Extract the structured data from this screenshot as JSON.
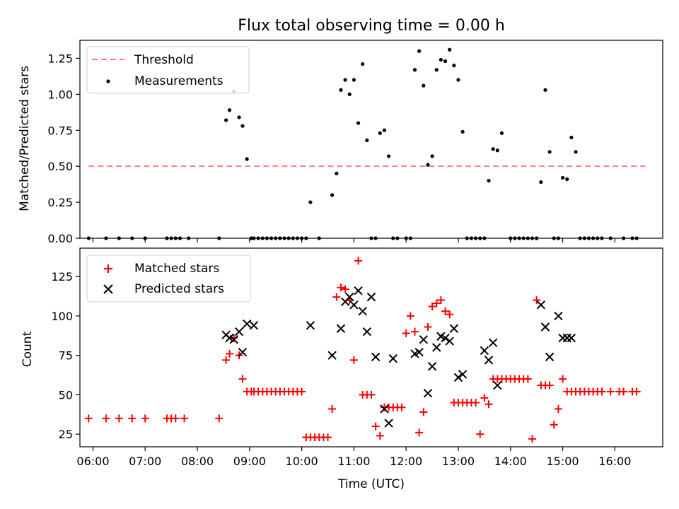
{
  "chart_data": [
    {
      "type": "scatter",
      "title": "Flux total observing time = 0.00 h",
      "xlabel": "",
      "ylabel": "Matched/Predicted stars",
      "xlim": [
        "05:45",
        "16:55"
      ],
      "ylim": [
        0,
        1.375
      ],
      "yticks": [
        0.0,
        0.25,
        0.5,
        0.75,
        1.0,
        1.25
      ],
      "ytick_labels": [
        "0.00",
        "0.25",
        "0.50",
        "0.75",
        "1.00",
        "1.25"
      ],
      "legend": "top-left",
      "threshold": {
        "label": "Threshold",
        "y": 0.5,
        "x_start": "05:55",
        "x_end": "16:35",
        "color": "#ff7f7f",
        "style": "dashed"
      },
      "series": [
        {
          "name": "Measurements",
          "marker": "dot",
          "color": "#000000",
          "x": [
            "05:55",
            "06:15",
            "06:30",
            "06:45",
            "07:00",
            "07:25",
            "07:30",
            "07:35",
            "07:40",
            "07:50",
            "08:25",
            "08:33",
            "08:37",
            "08:42",
            "08:48",
            "08:52",
            "08:57",
            "09:02",
            "09:05",
            "09:10",
            "09:15",
            "09:20",
            "09:25",
            "09:30",
            "09:35",
            "09:40",
            "09:45",
            "09:50",
            "09:55",
            "10:00",
            "10:05",
            "10:10",
            "10:20",
            "10:35",
            "10:40",
            "10:45",
            "10:50",
            "10:55",
            "11:00",
            "11:05",
            "11:10",
            "11:15",
            "11:20",
            "11:25",
            "11:30",
            "11:35",
            "11:40",
            "11:45",
            "11:50",
            "12:00",
            "12:05",
            "12:10",
            "12:15",
            "12:20",
            "12:25",
            "12:30",
            "12:35",
            "12:40",
            "12:45",
            "12:50",
            "12:55",
            "13:00",
            "13:05",
            "13:10",
            "13:15",
            "13:20",
            "13:25",
            "13:30",
            "13:35",
            "13:40",
            "13:45",
            "13:50",
            "14:00",
            "14:05",
            "14:10",
            "14:15",
            "14:20",
            "14:25",
            "14:30",
            "14:35",
            "14:40",
            "14:45",
            "14:50",
            "14:55",
            "15:00",
            "15:05",
            "15:10",
            "15:15",
            "15:20",
            "15:25",
            "15:30",
            "15:35",
            "15:40",
            "15:45",
            "15:55",
            "16:10",
            "16:20",
            "16:25"
          ],
          "y": [
            0,
            0,
            0,
            0,
            0,
            0,
            0,
            0,
            0,
            0,
            0,
            0.82,
            0.89,
            1.02,
            0.84,
            0.78,
            0.55,
            0,
            0,
            0,
            0,
            0,
            0,
            0,
            0,
            0,
            0,
            0,
            0,
            0,
            0,
            0.25,
            0,
            0.3,
            0.45,
            1.03,
            1.1,
            1.0,
            1.1,
            0.8,
            1.21,
            0.68,
            0,
            0,
            0.73,
            0.75,
            0.57,
            0,
            0,
            0,
            0,
            1.17,
            1.3,
            1.06,
            0.51,
            0.57,
            1.17,
            1.24,
            1.23,
            1.31,
            1.2,
            1.1,
            0.74,
            0,
            0,
            0,
            0,
            0,
            0.4,
            0.62,
            0.61,
            0.73,
            0,
            0,
            0,
            0,
            0,
            0,
            0,
            0.39,
            1.03,
            0.6,
            0,
            0,
            0.42,
            0.41,
            0.7,
            0.6,
            0,
            0,
            0,
            0,
            0,
            0,
            0,
            0,
            0,
            0
          ]
        }
      ]
    },
    {
      "type": "scatter",
      "title": "",
      "xlabel": "Time (UTC)",
      "ylabel": "Count",
      "xlim": [
        "05:45",
        "16:55"
      ],
      "ylim": [
        17,
        143
      ],
      "xticks": [
        "06:00",
        "07:00",
        "08:00",
        "09:00",
        "10:00",
        "11:00",
        "12:00",
        "13:00",
        "14:00",
        "15:00",
        "16:00"
      ],
      "yticks": [
        25,
        50,
        75,
        100,
        125
      ],
      "legend": "top-left",
      "series": [
        {
          "name": "Matched stars",
          "marker": "plus",
          "color": "#ff0000",
          "x": [
            "05:55",
            "06:15",
            "06:30",
            "06:45",
            "07:00",
            "07:25",
            "07:30",
            "07:35",
            "07:45",
            "08:25",
            "08:33",
            "08:37",
            "08:42",
            "08:48",
            "08:52",
            "08:57",
            "09:02",
            "09:05",
            "09:10",
            "09:15",
            "09:20",
            "09:25",
            "09:30",
            "09:35",
            "09:40",
            "09:45",
            "09:50",
            "09:55",
            "10:00",
            "10:05",
            "10:10",
            "10:15",
            "10:20",
            "10:25",
            "10:30",
            "10:35",
            "10:40",
            "10:45",
            "10:50",
            "10:55",
            "11:00",
            "11:05",
            "11:10",
            "11:15",
            "11:20",
            "11:25",
            "11:30",
            "11:35",
            "11:40",
            "11:45",
            "11:50",
            "11:55",
            "12:00",
            "12:05",
            "12:10",
            "12:15",
            "12:20",
            "12:25",
            "12:30",
            "12:35",
            "12:40",
            "12:45",
            "12:50",
            "12:55",
            "13:00",
            "13:05",
            "13:10",
            "13:15",
            "13:20",
            "13:25",
            "13:30",
            "13:35",
            "13:40",
            "13:45",
            "13:50",
            "13:55",
            "14:00",
            "14:05",
            "14:10",
            "14:15",
            "14:20",
            "14:25",
            "14:30",
            "14:35",
            "14:40",
            "14:45",
            "14:50",
            "14:55",
            "15:00",
            "15:05",
            "15:10",
            "15:15",
            "15:20",
            "15:25",
            "15:30",
            "15:35",
            "15:40",
            "15:45",
            "15:55",
            "16:05",
            "16:10",
            "16:20",
            "16:25"
          ],
          "y": [
            35,
            35,
            35,
            35,
            35,
            35,
            35,
            35,
            35,
            35,
            72,
            76,
            86,
            75,
            60,
            52,
            52,
            52,
            52,
            52,
            52,
            52,
            52,
            52,
            52,
            52,
            52,
            52,
            52,
            23,
            23,
            23,
            23,
            23,
            23,
            41,
            112,
            118,
            117,
            110,
            72,
            135,
            50,
            50,
            50,
            30,
            24,
            42,
            42,
            42,
            42,
            42,
            89,
            100,
            90,
            26,
            39,
            93,
            106,
            108,
            110,
            103,
            101,
            45,
            45,
            45,
            45,
            45,
            45,
            25,
            48,
            44,
            60,
            60,
            60,
            60,
            60,
            60,
            60,
            60,
            60,
            22,
            110,
            56,
            56,
            56,
            31,
            41,
            60,
            52,
            52,
            52,
            52,
            52,
            52,
            52,
            52,
            52,
            52,
            52,
            52,
            52,
            52
          ]
        },
        {
          "name": "Predicted stars",
          "marker": "x",
          "color": "#000000",
          "x": [
            "08:33",
            "08:37",
            "08:42",
            "08:48",
            "08:52",
            "08:57",
            "09:05",
            "10:10",
            "10:35",
            "10:45",
            "10:50",
            "10:55",
            "11:00",
            "11:05",
            "11:10",
            "11:15",
            "11:20",
            "11:25",
            "11:35",
            "11:40",
            "11:45",
            "12:10",
            "12:15",
            "12:20",
            "12:25",
            "12:30",
            "12:35",
            "12:40",
            "12:45",
            "12:50",
            "12:55",
            "13:00",
            "13:05",
            "13:30",
            "13:35",
            "13:40",
            "13:45",
            "14:35",
            "14:40",
            "14:45",
            "14:55",
            "15:00",
            "15:05",
            "15:10"
          ],
          "y": [
            88,
            86,
            85,
            90,
            77,
            95,
            94,
            94,
            75,
            92,
            109,
            112,
            107,
            116,
            103,
            90,
            112,
            74,
            41,
            32,
            73,
            76,
            77,
            85,
            51,
            68,
            80,
            87,
            86,
            84,
            92,
            61,
            63,
            78,
            72,
            83,
            56,
            107,
            93,
            74,
            100,
            86,
            86,
            86
          ]
        }
      ]
    }
  ]
}
